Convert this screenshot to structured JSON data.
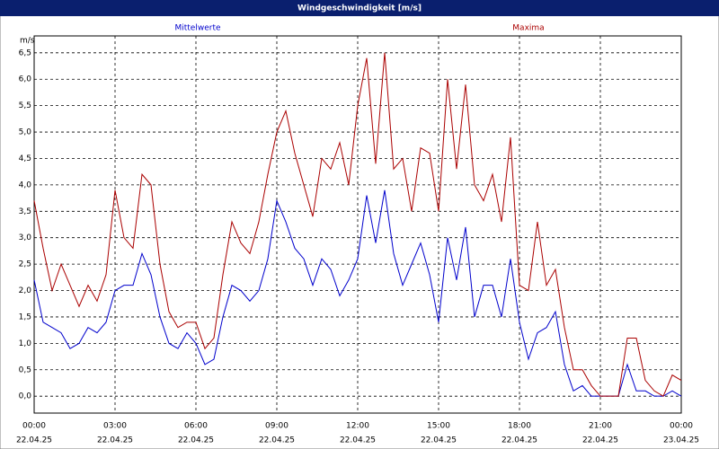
{
  "chart_data": {
    "type": "line",
    "title": "Windgeschwindigkeit [m/s]",
    "y_unit": "m/s",
    "x": [
      0,
      20,
      40,
      60,
      80,
      100,
      120,
      140,
      160,
      180,
      200,
      220,
      240,
      260,
      280,
      300,
      320,
      340,
      360,
      380,
      400,
      420,
      440,
      460,
      480,
      500,
      520,
      540,
      560,
      580,
      600,
      620,
      640,
      660,
      680,
      700,
      720,
      740,
      760,
      780,
      800,
      820,
      840,
      860,
      880,
      900,
      920,
      940,
      960,
      980,
      1000,
      1020,
      1040,
      1060,
      1080,
      1100,
      1120,
      1140,
      1160,
      1180,
      1200,
      1220,
      1240,
      1260,
      1280,
      1300,
      1320,
      1340,
      1360,
      1380,
      1400,
      1420,
      1440
    ],
    "series": [
      {
        "name": "Mittelwerte",
        "color": "#0000cc",
        "values": [
          2.2,
          1.4,
          1.3,
          1.2,
          0.9,
          1.0,
          1.3,
          1.2,
          1.4,
          2.0,
          2.1,
          2.1,
          2.7,
          2.3,
          1.5,
          1.0,
          0.9,
          1.2,
          1.0,
          0.6,
          0.7,
          1.5,
          2.1,
          2.0,
          1.8,
          2.0,
          2.6,
          3.7,
          3.3,
          2.8,
          2.6,
          2.1,
          2.6,
          2.4,
          1.9,
          2.2,
          2.6,
          3.8,
          2.9,
          3.9,
          2.7,
          2.1,
          2.5,
          2.9,
          2.3,
          1.4,
          3.0,
          2.2,
          3.2,
          1.5,
          2.1,
          2.1,
          1.5,
          2.6,
          1.4,
          0.7,
          1.2,
          1.3,
          1.6,
          0.6,
          0.1,
          0.2,
          0.0,
          0.0,
          0.0,
          0.0,
          0.6,
          0.1,
          0.1,
          0.0,
          0.0,
          0.1,
          0.0
        ]
      },
      {
        "name": "Maxima",
        "color": "#aa0000",
        "values": [
          3.7,
          2.8,
          2.0,
          2.5,
          2.1,
          1.7,
          2.1,
          1.8,
          2.3,
          3.9,
          3.0,
          2.8,
          4.2,
          4.0,
          2.5,
          1.6,
          1.3,
          1.4,
          1.4,
          0.9,
          1.1,
          2.3,
          3.3,
          2.9,
          2.7,
          3.3,
          4.2,
          5.0,
          5.4,
          4.6,
          4.0,
          3.4,
          4.5,
          4.3,
          4.8,
          4.0,
          5.5,
          6.4,
          4.4,
          6.5,
          4.3,
          4.5,
          3.5,
          4.7,
          4.6,
          3.5,
          6.0,
          4.3,
          5.9,
          4.0,
          3.7,
          4.2,
          3.3,
          4.9,
          2.1,
          2.0,
          3.3,
          2.1,
          2.4,
          1.3,
          0.5,
          0.5,
          0.2,
          0.0,
          0.0,
          0.0,
          1.1,
          1.1,
          0.3,
          0.1,
          0.0,
          0.4,
          0.3
        ]
      }
    ],
    "xlim": [
      0,
      1440
    ],
    "xticks": [
      {
        "value": 0,
        "label": "00:00"
      },
      {
        "value": 180,
        "label": "03:00"
      },
      {
        "value": 360,
        "label": "06:00"
      },
      {
        "value": 540,
        "label": "09:00"
      },
      {
        "value": 720,
        "label": "12:00"
      },
      {
        "value": 900,
        "label": "15:00"
      },
      {
        "value": 1080,
        "label": "18:00"
      },
      {
        "value": 1260,
        "label": "21:00"
      },
      {
        "value": 1440,
        "label": "00:00"
      }
    ],
    "xtick_dates": [
      "22.04.25",
      "22.04.25",
      "22.04.25",
      "22.04.25",
      "22.04.25",
      "22.04.25",
      "22.04.25",
      "22.04.25",
      "23.04.25"
    ],
    "ylim": [
      -0.32,
      6.82
    ],
    "yticks": [
      {
        "value": 0,
        "label": "0,0"
      },
      {
        "value": 0.5,
        "label": "0,5"
      },
      {
        "value": 1,
        "label": "1,0"
      },
      {
        "value": 1.5,
        "label": "1,5"
      },
      {
        "value": 2,
        "label": "2,0"
      },
      {
        "value": 2.5,
        "label": "2,5"
      },
      {
        "value": 3,
        "label": "3,0"
      },
      {
        "value": 3.5,
        "label": "3,5"
      },
      {
        "value": 4,
        "label": "4,0"
      },
      {
        "value": 4.5,
        "label": "4,5"
      },
      {
        "value": 5,
        "label": "5,0"
      },
      {
        "value": 5.5,
        "label": "5,5"
      },
      {
        "value": 6,
        "label": "6,0"
      },
      {
        "value": 6.5,
        "label": "6,5"
      }
    ],
    "grid": true
  }
}
